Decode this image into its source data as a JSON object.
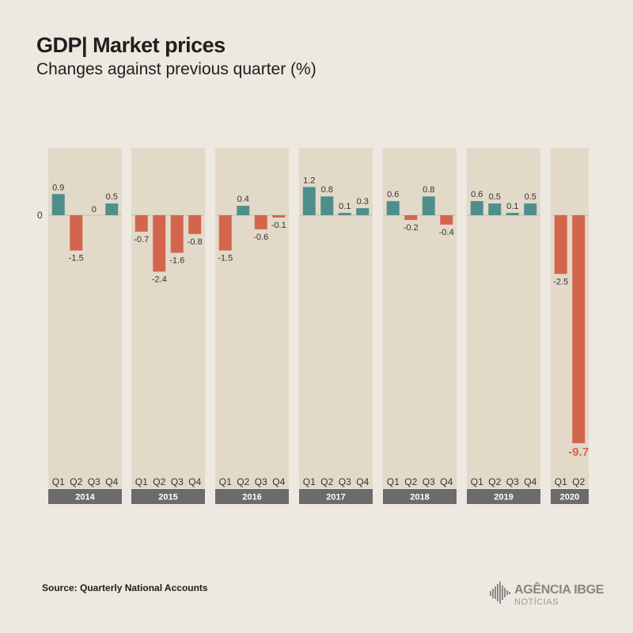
{
  "header": {
    "title": "GDP| Market prices",
    "subtitle": "Changes against previous quarter (%)"
  },
  "footer": {
    "source": "Source: Quarterly National Accounts",
    "logo_text": "AGÊNCIA IBGE",
    "logo_subtext": "NOTÍCIAS"
  },
  "colors": {
    "positive": "#4f8f8b",
    "negative": "#d4654d",
    "panel": "#e3d9c9",
    "year_bar": "#6b6b6b",
    "background": "#ede8e0"
  },
  "chart_data": {
    "type": "bar",
    "title": "GDP| Market prices",
    "subtitle": "Changes against previous quarter (%)",
    "zero_label": "0",
    "groups": [
      {
        "year": "2014",
        "quarters": [
          "Q1",
          "Q2",
          "Q3",
          "Q4"
        ],
        "values": [
          0.9,
          -1.5,
          0,
          0.5
        ],
        "labels": [
          "0.9",
          "-1.5",
          "0",
          "0.5"
        ]
      },
      {
        "year": "2015",
        "quarters": [
          "Q1",
          "Q2",
          "Q3",
          "Q4"
        ],
        "values": [
          -0.7,
          -2.4,
          -1.6,
          -0.8
        ],
        "labels": [
          "-0.7",
          "-2.4",
          "-1.6",
          "-0.8"
        ]
      },
      {
        "year": "2016",
        "quarters": [
          "Q1",
          "Q2",
          "Q3",
          "Q4"
        ],
        "values": [
          -1.5,
          0.4,
          -0.6,
          -0.1
        ],
        "labels": [
          "-1.5",
          "0.4",
          "-0.6",
          "-0.1"
        ]
      },
      {
        "year": "2017",
        "quarters": [
          "Q1",
          "Q2",
          "Q3",
          "Q4"
        ],
        "values": [
          1.2,
          0.8,
          0.1,
          0.3
        ],
        "labels": [
          "1.2",
          "0.8",
          "0.1",
          "0.3"
        ]
      },
      {
        "year": "2018",
        "quarters": [
          "Q1",
          "Q2",
          "Q3",
          "Q4"
        ],
        "values": [
          0.6,
          -0.2,
          0.8,
          -0.4
        ],
        "labels": [
          "0.6",
          "-0.2",
          "0.8",
          "-0.4"
        ]
      },
      {
        "year": "2019",
        "quarters": [
          "Q1",
          "Q2",
          "Q3",
          "Q4"
        ],
        "values": [
          0.6,
          0.5,
          0.1,
          0.5
        ],
        "labels": [
          "0.6",
          "0.5",
          "0.1",
          "0.5"
        ]
      },
      {
        "year": "2020",
        "quarters": [
          "Q1",
          "Q2"
        ],
        "values": [
          -2.5,
          -9.7
        ],
        "labels": [
          "-2.5",
          "-9.7"
        ]
      }
    ],
    "highlight_label": "-9.7",
    "ylim": [
      -9.7,
      2.6
    ],
    "grid": false,
    "legend": "none"
  }
}
